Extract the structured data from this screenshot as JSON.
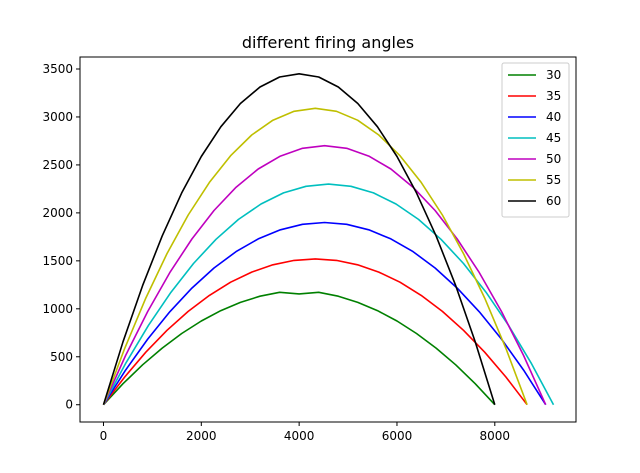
{
  "chart_data": {
    "type": "line",
    "title": "different firing angles",
    "xlabel": "",
    "ylabel": "",
    "xlim": [
      -480,
      9660
    ],
    "ylim": [
      -180,
      3625
    ],
    "xticks": [
      0,
      2000,
      4000,
      6000,
      8000
    ],
    "yticks": [
      0,
      500,
      1000,
      1500,
      2000,
      2500,
      3000,
      3500
    ],
    "grid": false,
    "legend_position": "top-right",
    "series": [
      {
        "name": "30",
        "color": "#008000",
        "x": [
          0,
          400,
          800,
          1200,
          1600,
          2000,
          2400,
          2800,
          3200,
          3600,
          4000,
          4400,
          4800,
          5200,
          5600,
          6000,
          6400,
          6800,
          7200,
          7600,
          8000
        ],
        "y": [
          0,
          219,
          416,
          590,
          743,
          873,
          981,
          1067,
          1131,
          1172,
          1155,
          1172,
          1131,
          1067,
          981,
          873,
          743,
          590,
          416,
          219,
          0
        ]
      },
      {
        "name": "35",
        "color": "#ff0000",
        "x": [
          0,
          433,
          866,
          1299,
          1732,
          2165,
          2598,
          3031,
          3464,
          3897,
          4330,
          4763,
          5196,
          5629,
          6062,
          6495,
          6928,
          7361,
          7794,
          8227,
          8660
        ],
        "y": [
          0,
          289,
          548,
          776,
          973,
          1140,
          1277,
          1383,
          1459,
          1505,
          1520,
          1505,
          1459,
          1383,
          1277,
          1140,
          973,
          776,
          548,
          289,
          0
        ]
      },
      {
        "name": "40",
        "color": "#0000ff",
        "x": [
          0,
          452,
          904,
          1356,
          1808,
          2260,
          2712,
          3164,
          3616,
          4068,
          4520,
          4972,
          5424,
          5876,
          6328,
          6780,
          7232,
          7684,
          8136,
          8588,
          9040
        ],
        "y": [
          0,
          361,
          684,
          969,
          1216,
          1425,
          1596,
          1729,
          1824,
          1881,
          1900,
          1881,
          1824,
          1729,
          1596,
          1425,
          1216,
          969,
          684,
          361,
          0
        ]
      },
      {
        "name": "45",
        "color": "#00bfbf",
        "x": [
          0,
          460,
          920,
          1380,
          1840,
          2300,
          2760,
          3220,
          3680,
          4140,
          4600,
          5060,
          5520,
          5980,
          6440,
          6900,
          7360,
          7820,
          8280,
          8740,
          9200
        ],
        "y": [
          0,
          437,
          828,
          1173,
          1472,
          1725,
          1932,
          2093,
          2208,
          2277,
          2300,
          2277,
          2208,
          2093,
          1932,
          1725,
          1472,
          1173,
          828,
          437,
          0
        ]
      },
      {
        "name": "50",
        "color": "#bf00bf",
        "x": [
          0,
          452,
          904,
          1356,
          1808,
          2260,
          2712,
          3164,
          3616,
          4068,
          4520,
          4972,
          5424,
          5876,
          6328,
          6780,
          7232,
          7684,
          8136,
          8588,
          9040
        ],
        "y": [
          0,
          513,
          972,
          1377,
          1728,
          2025,
          2268,
          2457,
          2592,
          2673,
          2700,
          2673,
          2592,
          2457,
          2268,
          2025,
          1728,
          1377,
          972,
          513,
          0
        ]
      },
      {
        "name": "55",
        "color": "#bfbf00",
        "x": [
          0,
          433,
          866,
          1299,
          1732,
          2165,
          2598,
          3031,
          3464,
          3897,
          4330,
          4763,
          5196,
          5629,
          6062,
          6495,
          6928,
          7361,
          7794,
          8227,
          8660
        ],
        "y": [
          0,
          587,
          1112,
          1576,
          1978,
          2318,
          2596,
          2812,
          2966,
          3059,
          3090,
          3059,
          2966,
          2812,
          2596,
          2318,
          1978,
          1576,
          1112,
          587,
          0
        ]
      },
      {
        "name": "60",
        "color": "#000000",
        "x": [
          0,
          400,
          800,
          1200,
          1600,
          2000,
          2400,
          2800,
          3200,
          3600,
          4000,
          4400,
          4800,
          5200,
          5600,
          6000,
          6400,
          6800,
          7200,
          7600,
          8000
        ],
        "y": [
          0,
          656,
          1242,
          1760,
          2208,
          2588,
          2898,
          3140,
          3312,
          3416,
          3450,
          3416,
          3312,
          3140,
          2898,
          2588,
          2208,
          1760,
          1242,
          656,
          0
        ]
      }
    ]
  }
}
